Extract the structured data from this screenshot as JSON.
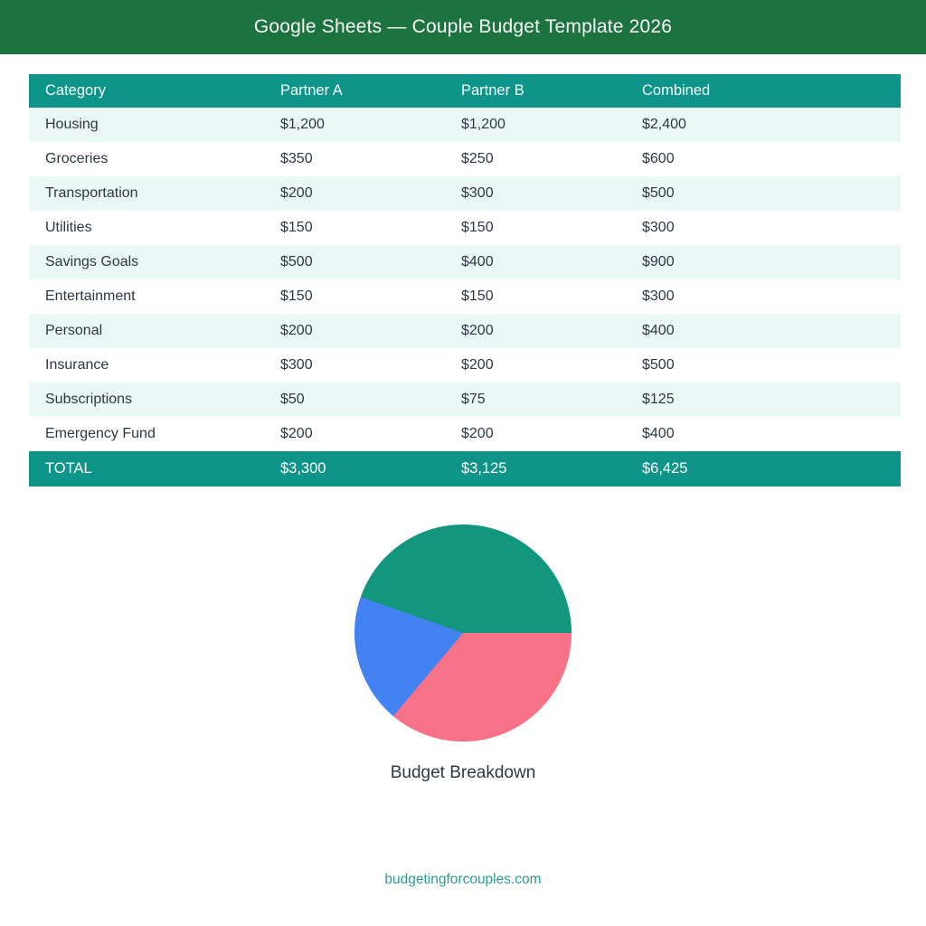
{
  "header": {
    "title": "Google Sheets — Couple Budget Template 2026"
  },
  "table": {
    "columns": [
      "Category",
      "Partner A",
      "Partner B",
      "Combined"
    ],
    "rows": [
      [
        "Housing",
        "$1,200",
        "$1,200",
        "$2,400"
      ],
      [
        "Groceries",
        "$350",
        "$250",
        "$600"
      ],
      [
        "Transportation",
        "$200",
        "$300",
        "$500"
      ],
      [
        "Utilities",
        "$150",
        "$150",
        "$300"
      ],
      [
        "Savings Goals",
        "$500",
        "$400",
        "$900"
      ],
      [
        "Entertainment",
        "$150",
        "$150",
        "$300"
      ],
      [
        "Personal",
        "$200",
        "$200",
        "$400"
      ],
      [
        "Insurance",
        "$300",
        "$200",
        "$500"
      ],
      [
        "Subscriptions",
        "$50",
        "$75",
        "$125"
      ],
      [
        "Emergency Fund",
        "$200",
        "$200",
        "$400"
      ]
    ],
    "total_row": [
      "TOTAL",
      "$3,300",
      "$3,125",
      "$6,425"
    ]
  },
  "chart_data": {
    "type": "pie",
    "title": "Budget Breakdown",
    "slices": [
      {
        "label": "pink-segment",
        "percent": 36.1,
        "color": "#f87287"
      },
      {
        "label": "blue-segment",
        "percent": 19.3,
        "color": "#4282f2"
      },
      {
        "label": "teal-segment",
        "percent": 44.6,
        "color": "#12967e"
      }
    ],
    "start_angle_deg": 90,
    "direction": "clockwise"
  },
  "footer": {
    "site": "budgetingforcouples.com"
  },
  "colors": {
    "banner_green": "#1d7340",
    "table_teal": "#0e9488",
    "row_stripe_mint": "#e9f8f5",
    "text_dark": "#2d3748",
    "footer_teal": "#2a9d8f",
    "pie_teal": "#12967e",
    "pie_pink": "#f87287",
    "pie_blue": "#4282f2"
  }
}
